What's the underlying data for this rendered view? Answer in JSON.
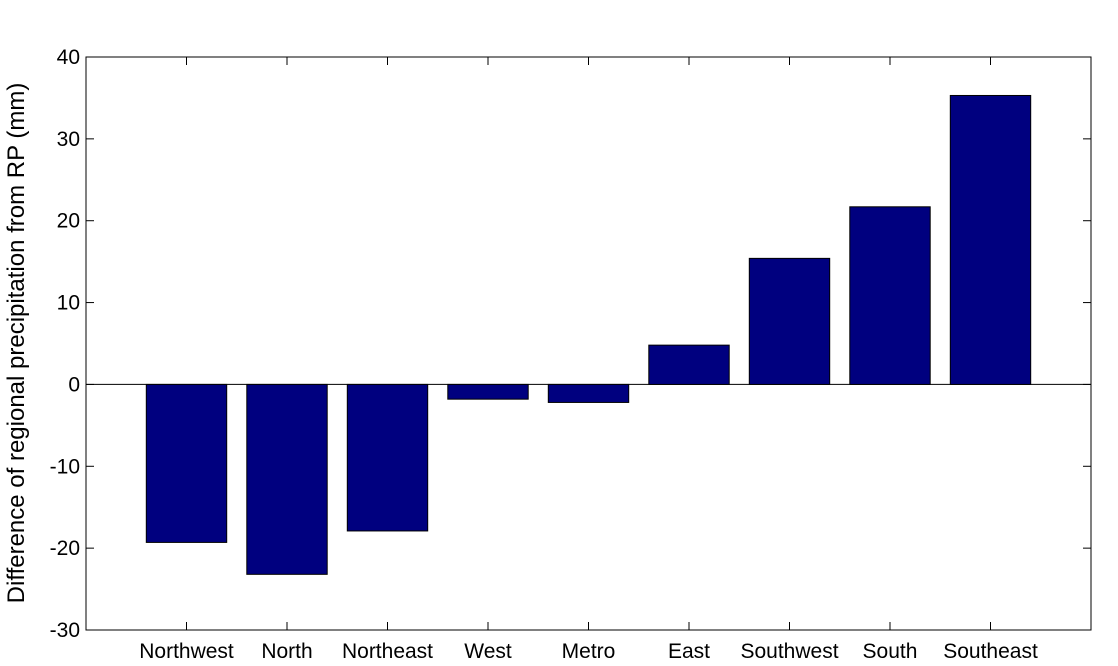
{
  "chart_data": {
    "type": "bar",
    "title": "",
    "xlabel": "",
    "ylabel": "Difference of regional precipitation from RP (mm)",
    "categories": [
      "Northwest",
      "North",
      "Northeast",
      "West",
      "Metro",
      "East",
      "Southwest",
      "South",
      "Southeast"
    ],
    "values": [
      -19.3,
      -23.2,
      -17.9,
      -1.8,
      -2.2,
      4.8,
      15.4,
      21.7,
      35.3
    ],
    "ylim": [
      -30,
      40
    ],
    "yticks": [
      -30,
      -20,
      -10,
      0,
      10,
      20,
      30,
      40
    ],
    "ytick_labels": [
      "-30",
      "-20",
      "-10",
      "0",
      "10",
      "20",
      "30",
      "40"
    ],
    "grid": false,
    "bar_color": "#00007f",
    "zero_line": true
  }
}
